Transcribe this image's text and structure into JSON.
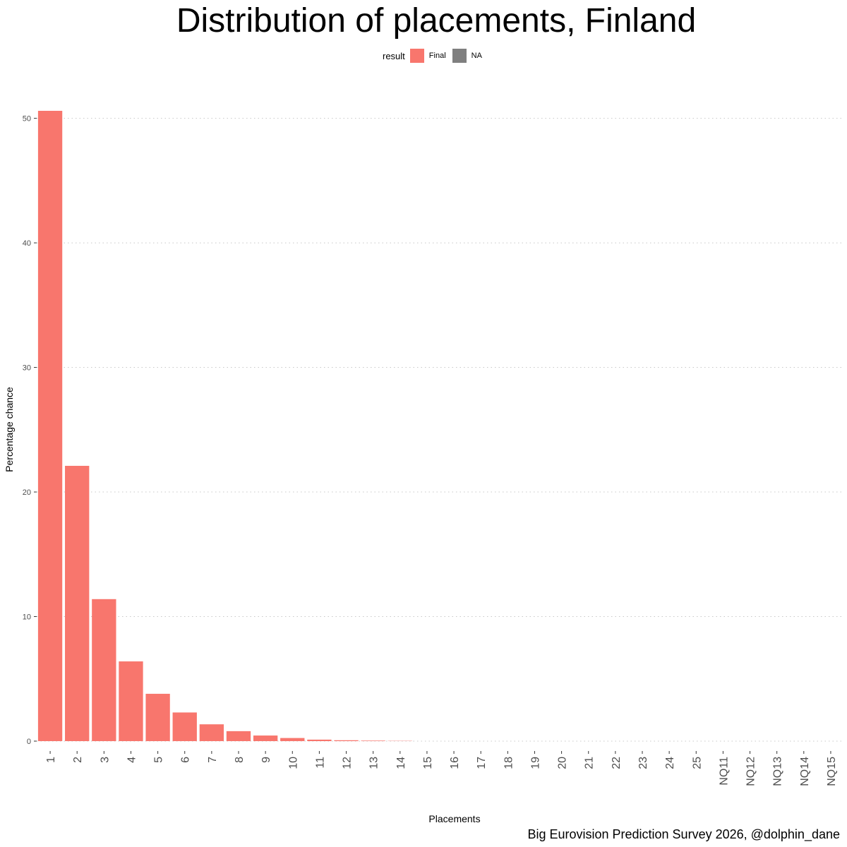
{
  "chart_data": {
    "type": "bar",
    "title": "Distribution of placements, Finland",
    "xlabel": "Placements",
    "ylabel": "Percentage chance",
    "caption": "Big Eurovision Prediction Survey 2026, @dolphin_dane",
    "legend": {
      "title": "result",
      "placement": "top",
      "entries": [
        {
          "label": "Final",
          "color": "#F8766D"
        },
        {
          "label": "NA",
          "color": "#7F7F7F"
        }
      ]
    },
    "categories": [
      "1",
      "2",
      "3",
      "4",
      "5",
      "6",
      "7",
      "8",
      "9",
      "10",
      "11",
      "12",
      "13",
      "14",
      "15",
      "16",
      "17",
      "18",
      "19",
      "20",
      "21",
      "22",
      "23",
      "24",
      "25",
      "NQ11",
      "NQ12",
      "NQ13",
      "NQ14",
      "NQ15"
    ],
    "values": [
      50.6,
      22.1,
      11.4,
      6.4,
      3.8,
      2.3,
      1.35,
      0.8,
      0.45,
      0.25,
      0.12,
      0.07,
      0.04,
      0.02,
      0,
      0,
      0,
      0,
      0,
      0,
      0,
      0,
      0,
      0,
      0,
      0,
      0,
      0,
      0,
      0
    ],
    "ylim": [
      0,
      50.6
    ],
    "yticks": [
      0,
      10,
      20,
      30,
      40,
      50
    ],
    "grid": "horizontal-dotted",
    "bar_color": "#F8766D"
  }
}
